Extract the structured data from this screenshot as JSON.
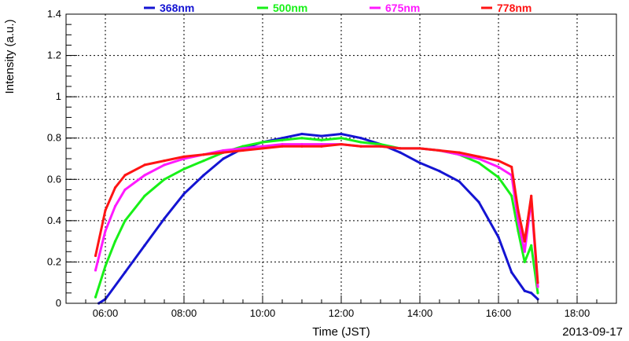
{
  "chart_data": {
    "type": "line",
    "xlabel": "Time (JST)",
    "ylabel": "Intensity (a.u.)",
    "date_label": "2013-09-17",
    "xlim": [
      "05:00",
      "19:00"
    ],
    "ylim": [
      0,
      1.4
    ],
    "grid": true,
    "legend_placement": "top",
    "x_ticks": [
      "06:00",
      "08:00",
      "10:00",
      "12:00",
      "14:00",
      "16:00",
      "18:00"
    ],
    "y_ticks": [
      "0",
      "0.2",
      "0.4",
      "0.6",
      "0.8",
      "1",
      "1.2",
      "1.4"
    ],
    "series": [
      {
        "name": "368nm",
        "color": "#1414d2",
        "points": [
          [
            "05:50",
            0.0
          ],
          [
            "06:00",
            0.02
          ],
          [
            "06:30",
            0.15
          ],
          [
            "07:00",
            0.28
          ],
          [
            "07:30",
            0.41
          ],
          [
            "08:00",
            0.53
          ],
          [
            "08:30",
            0.62
          ],
          [
            "09:00",
            0.7
          ],
          [
            "09:30",
            0.75
          ],
          [
            "10:00",
            0.78
          ],
          [
            "10:30",
            0.8
          ],
          [
            "11:00",
            0.82
          ],
          [
            "11:30",
            0.81
          ],
          [
            "12:00",
            0.82
          ],
          [
            "12:30",
            0.8
          ],
          [
            "13:00",
            0.77
          ],
          [
            "13:30",
            0.73
          ],
          [
            "14:00",
            0.68
          ],
          [
            "14:30",
            0.64
          ],
          [
            "15:00",
            0.59
          ],
          [
            "15:30",
            0.49
          ],
          [
            "16:00",
            0.32
          ],
          [
            "16:20",
            0.15
          ],
          [
            "16:40",
            0.06
          ],
          [
            "16:50",
            0.05
          ],
          [
            "17:00",
            0.02
          ]
        ]
      },
      {
        "name": "500nm",
        "color": "#18f018",
        "points": [
          [
            "05:45",
            0.03
          ],
          [
            "06:00",
            0.18
          ],
          [
            "06:15",
            0.3
          ],
          [
            "06:30",
            0.4
          ],
          [
            "07:00",
            0.52
          ],
          [
            "07:30",
            0.6
          ],
          [
            "08:00",
            0.65
          ],
          [
            "08:30",
            0.69
          ],
          [
            "09:00",
            0.73
          ],
          [
            "09:30",
            0.76
          ],
          [
            "10:00",
            0.78
          ],
          [
            "10:30",
            0.79
          ],
          [
            "11:00",
            0.8
          ],
          [
            "11:30",
            0.79
          ],
          [
            "12:00",
            0.8
          ],
          [
            "12:30",
            0.78
          ],
          [
            "13:00",
            0.77
          ],
          [
            "13:30",
            0.75
          ],
          [
            "14:00",
            0.75
          ],
          [
            "14:30",
            0.74
          ],
          [
            "15:00",
            0.72
          ],
          [
            "15:30",
            0.68
          ],
          [
            "16:00",
            0.61
          ],
          [
            "16:20",
            0.52
          ],
          [
            "16:30",
            0.35
          ],
          [
            "16:40",
            0.2
          ],
          [
            "16:50",
            0.28
          ],
          [
            "17:00",
            0.05
          ]
        ]
      },
      {
        "name": "675nm",
        "color": "#ff19ff",
        "points": [
          [
            "05:45",
            0.16
          ],
          [
            "06:00",
            0.35
          ],
          [
            "06:15",
            0.47
          ],
          [
            "06:30",
            0.55
          ],
          [
            "07:00",
            0.62
          ],
          [
            "07:30",
            0.67
          ],
          [
            "08:00",
            0.7
          ],
          [
            "08:30",
            0.72
          ],
          [
            "09:00",
            0.74
          ],
          [
            "09:30",
            0.75
          ],
          [
            "10:00",
            0.76
          ],
          [
            "10:30",
            0.77
          ],
          [
            "11:00",
            0.77
          ],
          [
            "11:30",
            0.77
          ],
          [
            "12:00",
            0.77
          ],
          [
            "12:30",
            0.76
          ],
          [
            "13:00",
            0.76
          ],
          [
            "13:30",
            0.75
          ],
          [
            "14:00",
            0.75
          ],
          [
            "14:30",
            0.74
          ],
          [
            "15:00",
            0.72
          ],
          [
            "15:30",
            0.7
          ],
          [
            "16:00",
            0.66
          ],
          [
            "16:20",
            0.62
          ],
          [
            "16:30",
            0.4
          ],
          [
            "16:40",
            0.25
          ],
          [
            "16:50",
            0.5
          ],
          [
            "17:00",
            0.08
          ]
        ]
      },
      {
        "name": "778nm",
        "color": "#ff1414",
        "points": [
          [
            "05:45",
            0.23
          ],
          [
            "06:00",
            0.45
          ],
          [
            "06:15",
            0.56
          ],
          [
            "06:30",
            0.62
          ],
          [
            "07:00",
            0.67
          ],
          [
            "07:30",
            0.69
          ],
          [
            "08:00",
            0.71
          ],
          [
            "08:30",
            0.72
          ],
          [
            "09:00",
            0.73
          ],
          [
            "09:30",
            0.74
          ],
          [
            "10:00",
            0.75
          ],
          [
            "10:30",
            0.76
          ],
          [
            "11:00",
            0.76
          ],
          [
            "11:30",
            0.76
          ],
          [
            "12:00",
            0.77
          ],
          [
            "12:30",
            0.76
          ],
          [
            "13:00",
            0.76
          ],
          [
            "13:30",
            0.75
          ],
          [
            "14:00",
            0.75
          ],
          [
            "14:30",
            0.74
          ],
          [
            "15:00",
            0.73
          ],
          [
            "15:30",
            0.71
          ],
          [
            "16:00",
            0.69
          ],
          [
            "16:20",
            0.66
          ],
          [
            "16:30",
            0.45
          ],
          [
            "16:40",
            0.3
          ],
          [
            "16:50",
            0.52
          ],
          [
            "17:00",
            0.1
          ]
        ]
      }
    ]
  }
}
